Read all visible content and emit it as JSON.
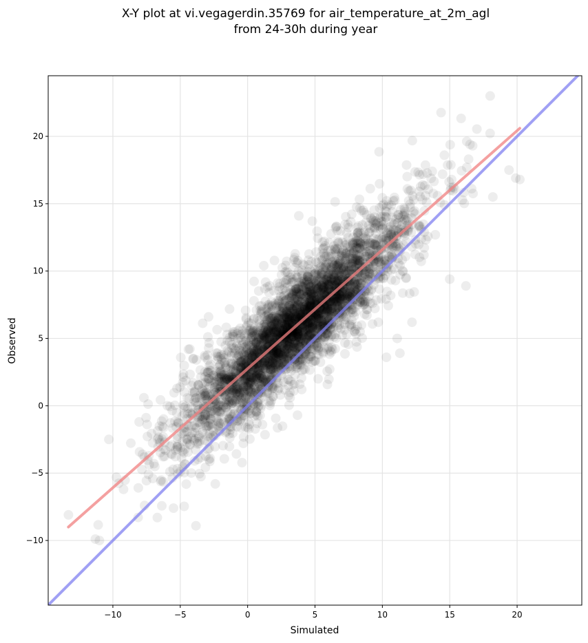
{
  "chart_data": {
    "type": "scatter",
    "title_lines": [
      "X-Y plot at vi.vegagerdin.35769 for air_temperature_at_2m_agl",
      "from 24-30h during year"
    ],
    "xlabel": "Simulated",
    "ylabel": "Observed",
    "xlim": [
      -14.8,
      24.8
    ],
    "ylim": [
      -14.8,
      24.5
    ],
    "xticks": [
      -10,
      -5,
      0,
      5,
      10,
      15,
      20
    ],
    "yticks": [
      -10,
      -5,
      0,
      5,
      10,
      15,
      20
    ],
    "xtick_labels": [
      "−10",
      "−5",
      "0",
      "5",
      "10",
      "15",
      "20"
    ],
    "ytick_labels": [
      "−10",
      "−5",
      "0",
      "5",
      "10",
      "15",
      "20"
    ],
    "grid": true,
    "point_color": "#000000",
    "point_alpha": 0.07,
    "reference_lines": [
      {
        "kind": "regression",
        "color": "#f08080",
        "x": [
          -13.3,
          20.2
        ],
        "y": [
          -9.0,
          20.6
        ]
      },
      {
        "kind": "identity",
        "color": "#8080f0",
        "x": [
          -14.8,
          24.8
        ],
        "y": [
          -14.8,
          24.8
        ]
      }
    ],
    "point_cloud": {
      "model": "y = 0.884 * x + 2.76 + noise",
      "x_range": [
        -13.4,
        20.3
      ],
      "x_center": 3.5,
      "noise_sd": 2.0
    },
    "outliers": [
      {
        "x": 18.0,
        "y": 23.0
      },
      {
        "x": 20.2,
        "y": 16.8
      },
      {
        "x": 19.9,
        "y": 16.9
      },
      {
        "x": 18.2,
        "y": 15.5
      },
      {
        "x": 16.7,
        "y": 19.3
      },
      {
        "x": 14.6,
        "y": 18.6
      },
      {
        "x": 16.4,
        "y": 18.3
      },
      {
        "x": 19.4,
        "y": 17.5
      },
      {
        "x": 13.7,
        "y": 17.4
      },
      {
        "x": 10.3,
        "y": 3.6
      },
      {
        "x": 11.1,
        "y": 5.0
      },
      {
        "x": 9.7,
        "y": 6.2
      },
      {
        "x": 12.2,
        "y": 6.2
      },
      {
        "x": 3.8,
        "y": 14.1
      },
      {
        "x": 4.8,
        "y": 13.7
      },
      {
        "x": 1.2,
        "y": 10.4
      },
      {
        "x": -2.9,
        "y": 6.6
      },
      {
        "x": -10.3,
        "y": -2.5
      },
      {
        "x": -11.3,
        "y": -9.9
      },
      {
        "x": -11.0,
        "y": -10.0
      },
      {
        "x": -6.7,
        "y": -8.3
      },
      {
        "x": -13.3,
        "y": -8.1
      },
      {
        "x": -7.7,
        "y": 0.6
      },
      {
        "x": 1.1,
        "y": -1.4
      },
      {
        "x": 3.7,
        "y": -0.7
      },
      {
        "x": -2.4,
        "y": -5.8
      },
      {
        "x": -5.5,
        "y": -7.6
      },
      {
        "x": 15.0,
        "y": 9.4
      },
      {
        "x": 16.2,
        "y": 8.9
      },
      {
        "x": 11.3,
        "y": 3.9
      }
    ]
  }
}
